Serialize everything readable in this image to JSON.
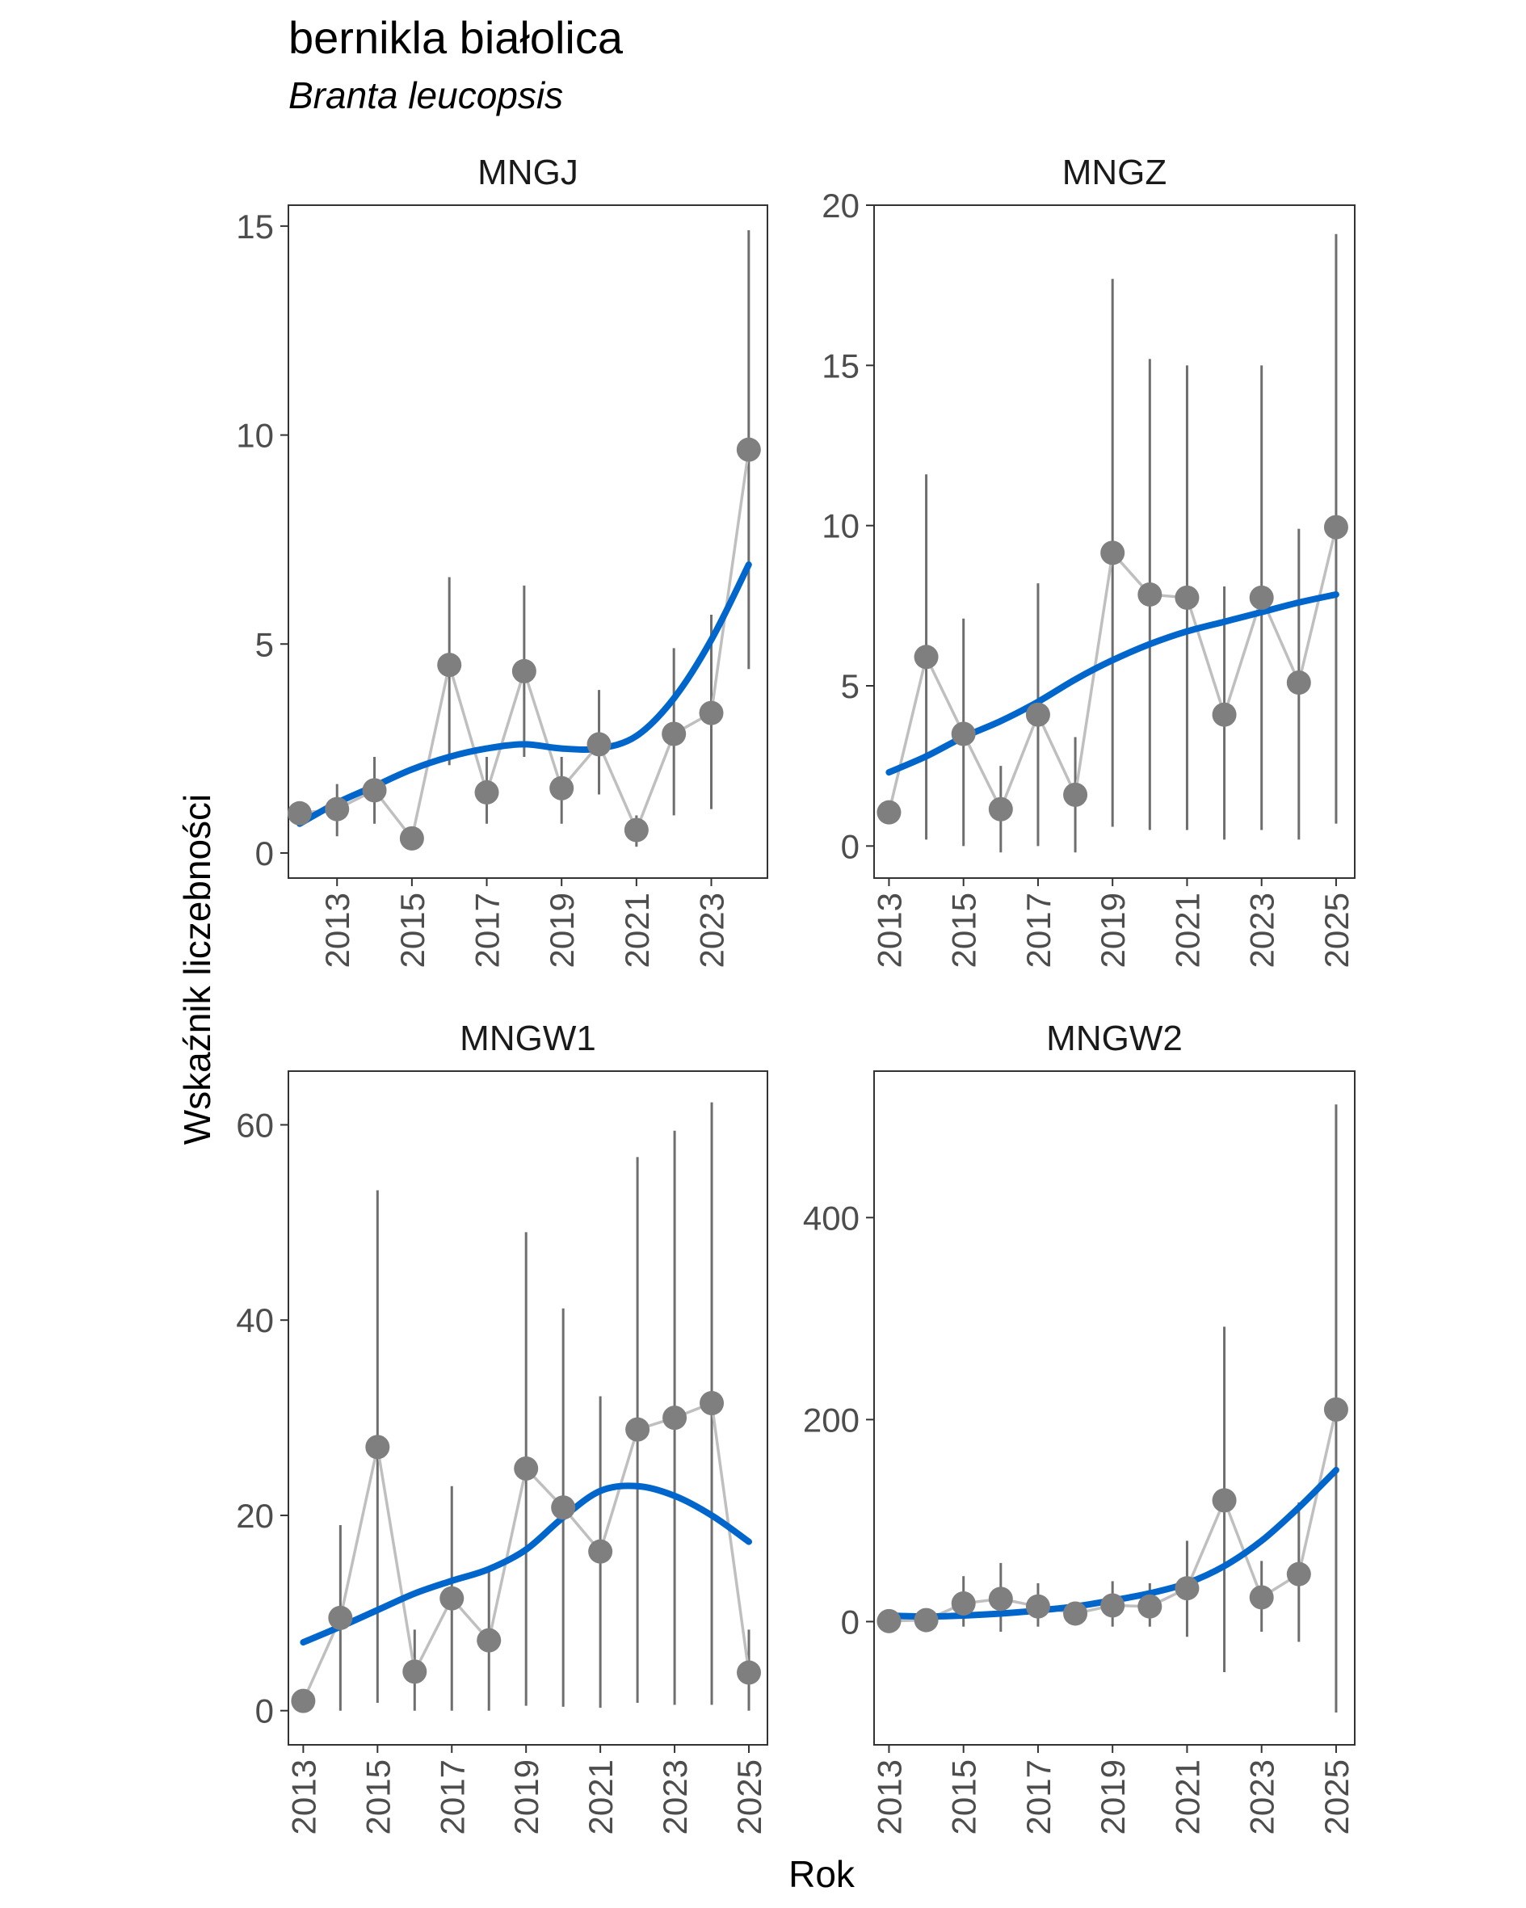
{
  "title": "bernikla białolica",
  "subtitle": "Branta leucopsis",
  "xlabel": "Rok",
  "ylabel": "Wskaźnik liczebności",
  "colors": {
    "points": "#7f7f7f",
    "connector": "#bfbfbf",
    "errorbar": "#6e6e6e",
    "trend": "#0066cc",
    "frame": "#333333",
    "tick_text": "#4d4d4d"
  },
  "chart_data": [
    {
      "type": "line",
      "panel": "MNGJ",
      "x": [
        2012,
        2013,
        2014,
        2015,
        2016,
        2017,
        2018,
        2019,
        2020,
        2021,
        2022,
        2023,
        2024
      ],
      "y": [
        0.95,
        1.05,
        1.5,
        0.35,
        4.5,
        1.45,
        4.35,
        1.55,
        2.6,
        0.55,
        2.85,
        3.35,
        9.65
      ],
      "lower": [
        null,
        0.4,
        0.7,
        null,
        2.1,
        0.7,
        2.3,
        0.7,
        1.4,
        0.15,
        0.9,
        1.05,
        4.4
      ],
      "upper": [
        null,
        1.65,
        2.3,
        null,
        6.6,
        2.3,
        6.4,
        2.3,
        3.9,
        0.9,
        4.9,
        5.7,
        14.9
      ],
      "trend": [
        [
          2012,
          0.7
        ],
        [
          2013,
          1.2
        ],
        [
          2014,
          1.6
        ],
        [
          2015,
          2.0
        ],
        [
          2016,
          2.3
        ],
        [
          2017,
          2.5
        ],
        [
          2018,
          2.6
        ],
        [
          2019,
          2.5
        ],
        [
          2020,
          2.5
        ],
        [
          2021,
          2.8
        ],
        [
          2022,
          3.7
        ],
        [
          2023,
          5.1
        ],
        [
          2024,
          6.9
        ]
      ],
      "xlim": [
        2011.7,
        2024.5
      ],
      "ylim": [
        -0.6,
        15.5
      ],
      "yticks": [
        0,
        5,
        10,
        15
      ],
      "xticks": [
        2013,
        2015,
        2017,
        2019,
        2021,
        2023
      ]
    },
    {
      "type": "line",
      "panel": "MNGZ",
      "x": [
        2013,
        2014,
        2015,
        2016,
        2017,
        2018,
        2019,
        2020,
        2021,
        2022,
        2023,
        2024,
        2025
      ],
      "y": [
        1.05,
        5.9,
        3.5,
        1.15,
        4.1,
        1.6,
        9.15,
        7.85,
        7.75,
        4.1,
        7.75,
        5.1,
        9.95
      ],
      "lower": [
        null,
        0.2,
        0.0,
        -0.2,
        0.0,
        -0.2,
        0.6,
        0.5,
        0.5,
        0.2,
        0.5,
        0.2,
        0.7
      ],
      "upper": [
        null,
        11.6,
        7.1,
        2.5,
        8.2,
        3.4,
        17.7,
        15.2,
        15.0,
        8.1,
        15.0,
        9.9,
        19.1
      ],
      "trend": [
        [
          2013,
          2.3
        ],
        [
          2014,
          2.8
        ],
        [
          2015,
          3.4
        ],
        [
          2016,
          3.9
        ],
        [
          2017,
          4.5
        ],
        [
          2018,
          5.2
        ],
        [
          2019,
          5.8
        ],
        [
          2020,
          6.3
        ],
        [
          2021,
          6.7
        ],
        [
          2022,
          7.0
        ],
        [
          2023,
          7.3
        ],
        [
          2024,
          7.6
        ],
        [
          2025,
          7.85
        ]
      ],
      "xlim": [
        2012.6,
        2025.5
      ],
      "ylim": [
        -1.0,
        20.0
      ],
      "yticks": [
        0,
        5,
        10,
        15,
        20
      ],
      "xticks": [
        2013,
        2015,
        2017,
        2019,
        2021,
        2023,
        2025
      ]
    },
    {
      "type": "line",
      "panel": "MNGW1",
      "x": [
        2013,
        2014,
        2015,
        2016,
        2017,
        2018,
        2019,
        2020,
        2021,
        2022,
        2023,
        2024,
        2025
      ],
      "y": [
        1.0,
        9.5,
        27.0,
        4.0,
        11.5,
        7.2,
        24.8,
        20.8,
        16.3,
        28.8,
        30.0,
        31.5,
        3.9
      ],
      "lower": [
        null,
        0.0,
        0.8,
        0.0,
        0.0,
        0.0,
        0.5,
        0.4,
        0.3,
        0.8,
        0.6,
        0.6,
        0.0
      ],
      "upper": [
        null,
        19.0,
        53.3,
        8.3,
        23.0,
        14.5,
        49.0,
        41.2,
        32.2,
        56.7,
        59.4,
        62.3,
        8.3
      ],
      "trend": [
        [
          2013,
          7.0
        ],
        [
          2014,
          8.6
        ],
        [
          2015,
          10.3
        ],
        [
          2016,
          12.0
        ],
        [
          2017,
          13.3
        ],
        [
          2018,
          14.5
        ],
        [
          2019,
          16.5
        ],
        [
          2020,
          19.8
        ],
        [
          2021,
          22.5
        ],
        [
          2022,
          23.0
        ],
        [
          2023,
          22.0
        ],
        [
          2024,
          20.0
        ],
        [
          2025,
          17.3
        ]
      ],
      "xlim": [
        2012.6,
        2025.5
      ],
      "ylim": [
        -3.5,
        65.5
      ],
      "yticks": [
        0,
        20,
        40,
        60
      ],
      "xticks": [
        2013,
        2015,
        2017,
        2019,
        2021,
        2023,
        2025
      ]
    },
    {
      "type": "line",
      "panel": "MNGW2",
      "x": [
        2013,
        2014,
        2015,
        2016,
        2017,
        2018,
        2019,
        2020,
        2021,
        2022,
        2023,
        2024,
        2025
      ],
      "y": [
        0.5,
        1.5,
        18.0,
        22.5,
        15.0,
        8.0,
        16.0,
        15.0,
        33.0,
        120.0,
        24.0,
        47.0,
        210.0
      ],
      "lower": [
        null,
        null,
        -5.0,
        -10.0,
        -5.0,
        null,
        -5.0,
        -5.0,
        -15.0,
        -50.0,
        -10.0,
        -20.0,
        -90.0
      ],
      "upper": [
        null,
        null,
        45.0,
        58.0,
        38.0,
        null,
        40.0,
        38.0,
        80.0,
        292.0,
        60.0,
        118.0,
        512.0
      ],
      "trend": [
        [
          2013,
          6.0
        ],
        [
          2014,
          5.0
        ],
        [
          2015,
          6.0
        ],
        [
          2016,
          8.0
        ],
        [
          2017,
          11.0
        ],
        [
          2018,
          15.0
        ],
        [
          2019,
          21.0
        ],
        [
          2020,
          28.0
        ],
        [
          2021,
          38.0
        ],
        [
          2022,
          55.0
        ],
        [
          2023,
          80.0
        ],
        [
          2024,
          113.0
        ],
        [
          2025,
          150.0
        ]
      ],
      "xlim": [
        2012.6,
        2025.5
      ],
      "ylim": [
        -122.0,
        545.0
      ],
      "yticks": [
        0,
        200,
        400
      ],
      "xticks": [
        2013,
        2015,
        2017,
        2019,
        2021,
        2023,
        2025
      ]
    }
  ]
}
